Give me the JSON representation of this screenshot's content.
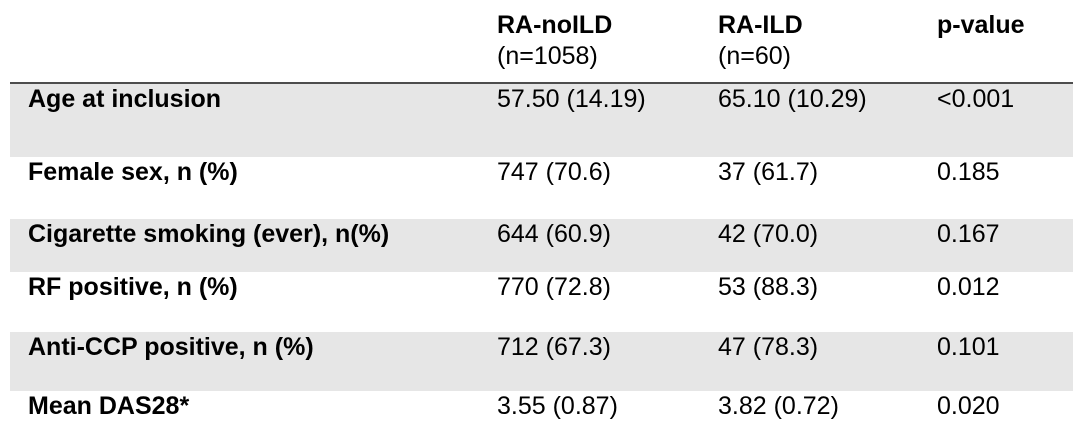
{
  "table": {
    "header": {
      "col1": "",
      "col2": {
        "title": "RA-noILD",
        "subtitle": "(n=1058)"
      },
      "col3": {
        "title": "RA-ILD",
        "subtitle": "(n=60)"
      },
      "col4": {
        "title": "p-value",
        "subtitle": ""
      }
    },
    "rows": [
      {
        "label": "Age at inclusion",
        "ra_noild": "57.50 (14.19)",
        "ra_ild": "65.10 (10.29)",
        "p_value": "<0.001"
      },
      {
        "label": "Female sex, n (%)",
        "ra_noild": "747 (70.6)",
        "ra_ild": "37 (61.7)",
        "p_value": "0.185"
      },
      {
        "label": "Cigarette smoking (ever), n(%)",
        "ra_noild": "644 (60.9)",
        "ra_ild": "42 (70.0)",
        "p_value": "0.167"
      },
      {
        "label": "RF positive, n (%)",
        "ra_noild": "770 (72.8)",
        "ra_ild": "53 (88.3)",
        "p_value": "0.012"
      },
      {
        "label": "Anti-CCP positive, n (%)",
        "ra_noild": "712 (67.3)",
        "ra_ild": "47 (78.3)",
        "p_value": "0.101"
      },
      {
        "label": "Mean DAS28*",
        "ra_noild": "3.55 (0.87)",
        "ra_ild": "3.82 (0.72)",
        "p_value": "0.020"
      }
    ],
    "colors": {
      "row_shading": "#e6e6e6",
      "header_rule": "#4d4d4d",
      "text": "#000000",
      "background": "#ffffff"
    }
  }
}
